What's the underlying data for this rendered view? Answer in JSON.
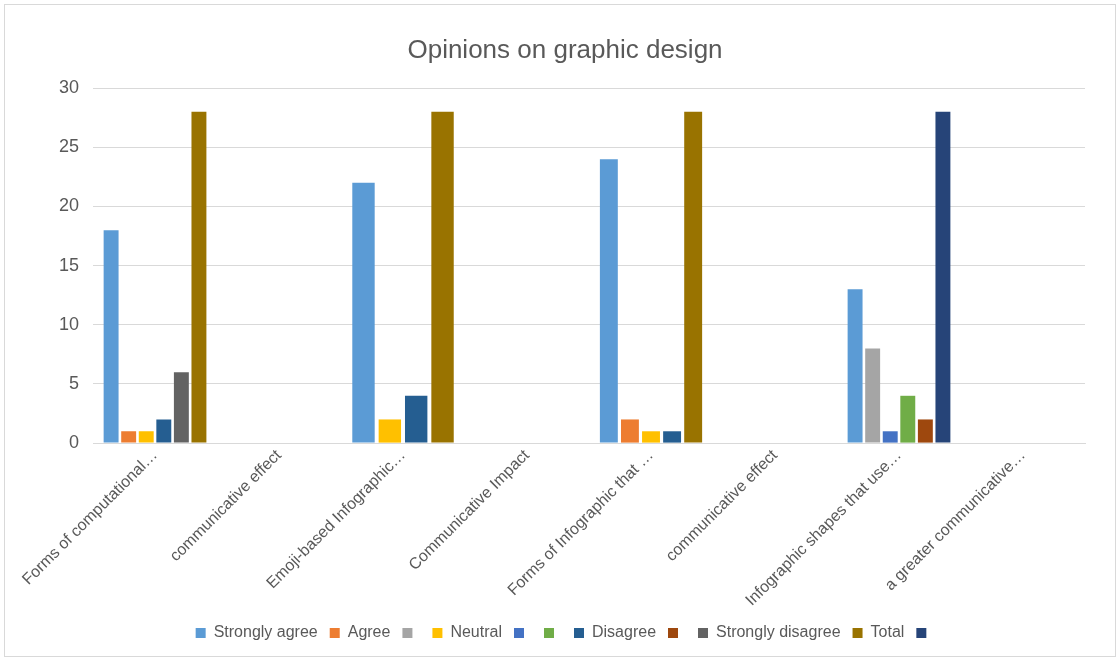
{
  "chart_data": {
    "type": "bar",
    "title": "Opinions on graphic design",
    "categories": [
      "Forms of computational…",
      "communicative effect",
      "Emoji-based Infographic…",
      "Communicative Impact",
      "Forms of Infographic that …",
      "communicative effect",
      "Infographic shapes that use…",
      "a greater communicative…"
    ],
    "series": [
      {
        "name": "Strongly agree",
        "color": "#5b9bd5",
        "values": [
          18,
          null,
          22,
          null,
          24,
          null,
          13,
          null
        ]
      },
      {
        "name": "Agree",
        "color": "#ed7d31",
        "values": [
          1,
          null,
          null,
          null,
          2,
          null,
          null,
          null
        ]
      },
      {
        "color": "#a5a5a5",
        "values": [
          null,
          null,
          null,
          null,
          null,
          null,
          8,
          null
        ]
      },
      {
        "name": "Neutral",
        "color": "#ffc000",
        "values": [
          1,
          null,
          2,
          null,
          1,
          null,
          null,
          null
        ]
      },
      {
        "color": "#4472c4",
        "values": [
          null,
          null,
          null,
          null,
          null,
          null,
          1,
          null
        ]
      },
      {
        "color": "#70ad47",
        "values": [
          null,
          null,
          null,
          null,
          null,
          null,
          4,
          null
        ]
      },
      {
        "name": "Disagree",
        "color": "#255e91",
        "values": [
          2,
          null,
          4,
          null,
          1,
          null,
          null,
          null
        ]
      },
      {
        "color": "#9e480e",
        "values": [
          null,
          null,
          null,
          null,
          null,
          null,
          2,
          null
        ]
      },
      {
        "name": "Strongly disagree",
        "color": "#636363",
        "values": [
          6,
          null,
          null,
          null,
          null,
          null,
          null,
          null
        ]
      },
      {
        "name": "Total",
        "color": "#997300",
        "values": [
          28,
          null,
          28,
          null,
          28,
          null,
          null,
          null
        ]
      },
      {
        "color": "#264478",
        "values": [
          null,
          null,
          null,
          null,
          null,
          null,
          28,
          null
        ]
      }
    ],
    "ylim": [
      0,
      30
    ],
    "yticks": [
      0,
      5,
      10,
      15,
      20,
      25,
      30
    ],
    "grid": "y",
    "legend": "bottom"
  }
}
